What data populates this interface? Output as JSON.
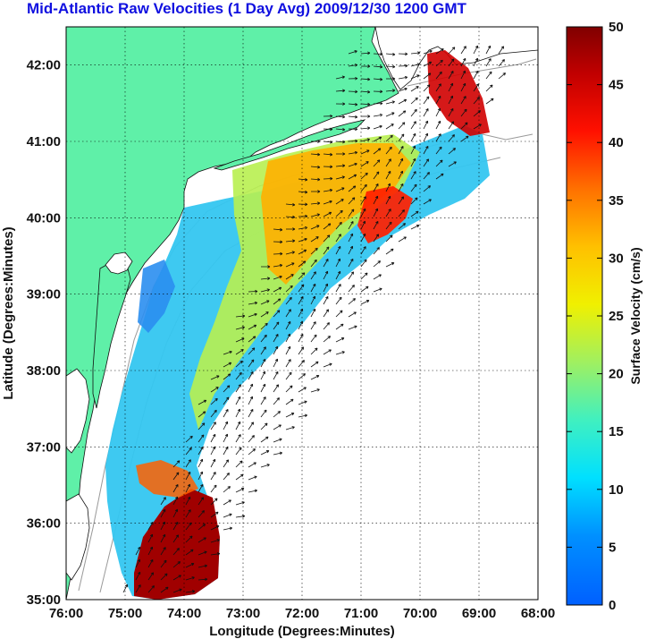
{
  "title": "Mid-Atlantic Raw Velocities (1 Day Avg) 2009/12/30 1200 GMT",
  "map": {
    "xlabel": "Longitude (Degrees:Minutes)",
    "ylabel": "Latitude (Degrees:Minutes)",
    "xlim": [
      -76,
      -68
    ],
    "ylim": [
      35,
      42.5
    ],
    "x_ticks": [
      {
        "value": -76,
        "label": "76:00"
      },
      {
        "value": -75,
        "label": "75:00"
      },
      {
        "value": -74,
        "label": "74:00"
      },
      {
        "value": -73,
        "label": "73:00"
      },
      {
        "value": -72,
        "label": "72:00"
      },
      {
        "value": -71,
        "label": "71:00"
      },
      {
        "value": -70,
        "label": "70:00"
      },
      {
        "value": -69,
        "label": "69:00"
      },
      {
        "value": -68,
        "label": "68:00"
      }
    ],
    "y_ticks": [
      {
        "value": 35,
        "label": "35:00"
      },
      {
        "value": 36,
        "label": "36:00"
      },
      {
        "value": 37,
        "label": "37:00"
      },
      {
        "value": 38,
        "label": "38:00"
      },
      {
        "value": 39,
        "label": "39:00"
      },
      {
        "value": 40,
        "label": "40:00"
      },
      {
        "value": 41,
        "label": "41:00"
      },
      {
        "value": 42,
        "label": "42:00"
      }
    ],
    "grid": true,
    "colors": {
      "land": "#5ff0a8",
      "water": "#ffffff",
      "contour": "#999999",
      "coast": "#111111"
    }
  },
  "colorbar": {
    "label": "Surface Velocity (cm/s)",
    "min": 0,
    "max": 50,
    "ticks": [
      "0",
      "5",
      "10",
      "15",
      "20",
      "25",
      "30",
      "35",
      "40",
      "45",
      "50"
    ]
  }
}
